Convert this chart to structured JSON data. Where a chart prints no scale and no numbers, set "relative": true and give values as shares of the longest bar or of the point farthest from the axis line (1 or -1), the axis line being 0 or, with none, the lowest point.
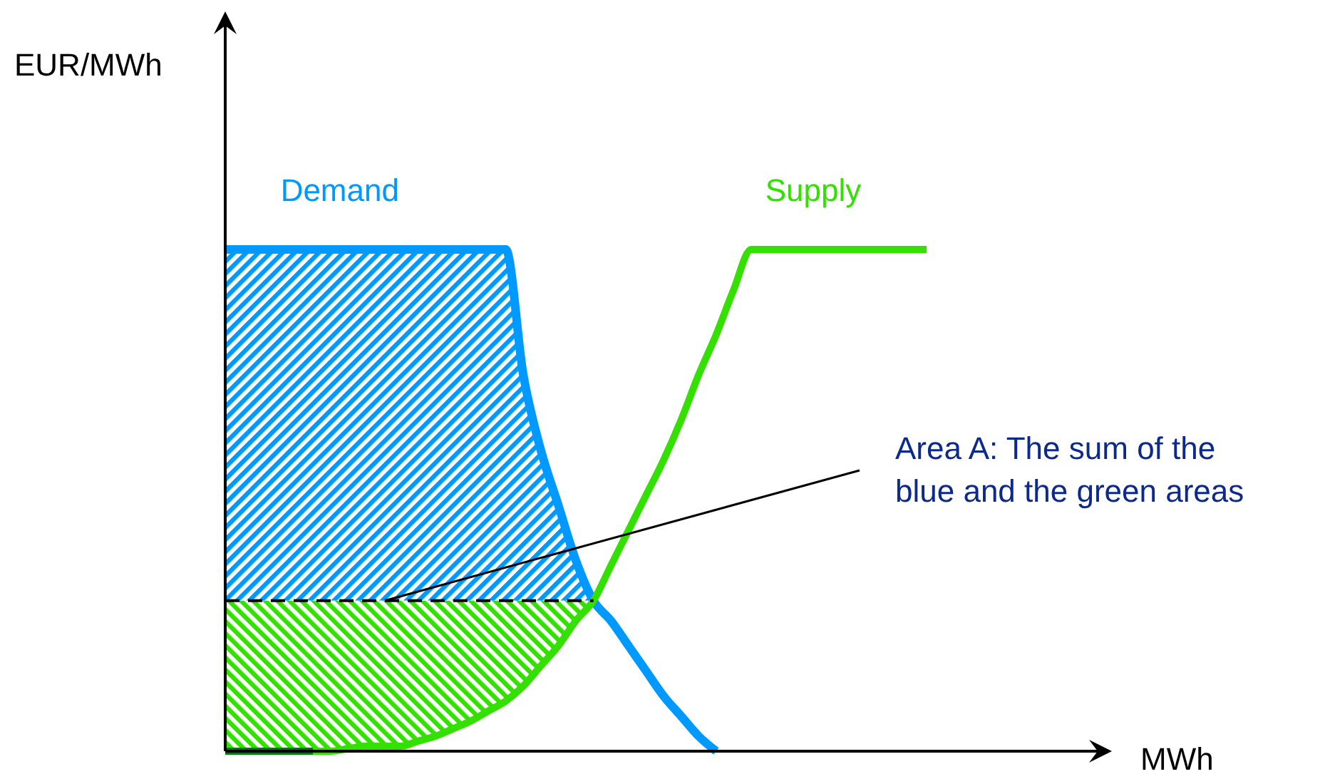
{
  "chart_data": {
    "type": "line",
    "relative": true,
    "categories": [
      null,
      null,
      null,
      null,
      null,
      null,
      null,
      null,
      null,
      null,
      null,
      null,
      null,
      null,
      null,
      null,
      null,
      null,
      null,
      null,
      null,
      null,
      null,
      null,
      null,
      null,
      null,
      null,
      null,
      null,
      null,
      null,
      null,
      null,
      null,
      null,
      null,
      null,
      null,
      null,
      null
    ],
    "series": [
      {
        "name": "Demand",
        "color": "#0099ff",
        "values": [
          1,
          1,
          1,
          1,
          1,
          1,
          1,
          1,
          1,
          1,
          1,
          1,
          1,
          1,
          1,
          1,
          1,
          0.75,
          0.6,
          0.49,
          0.38,
          0.3,
          0.26,
          0.21,
          0.16,
          0.11,
          0.07,
          0.03,
          0,
          null,
          null,
          null,
          null,
          null,
          null,
          null,
          null,
          null,
          null,
          null,
          null
        ],
        "lower": [
          0.3,
          0.3,
          0.3,
          0.3,
          0.3,
          0.3,
          0.3,
          0.3,
          0.3,
          0.3,
          0.3,
          0.3,
          0.3,
          0.3,
          0.3,
          0.3,
          0.3,
          0.3,
          0.3,
          0.3,
          0.3,
          0.3,
          null,
          null,
          null,
          null,
          null,
          null,
          null,
          null,
          null,
          null,
          null,
          null,
          null,
          null,
          null,
          null,
          null,
          null,
          null
        ],
        "upper": [
          1,
          1,
          1,
          1,
          1,
          1,
          1,
          1,
          1,
          1,
          1,
          1,
          1,
          1,
          1,
          1,
          1,
          0.75,
          0.6,
          0.49,
          0.38,
          0.3,
          null,
          null,
          null,
          null,
          null,
          null,
          null,
          null,
          null,
          null,
          null,
          null,
          null,
          null,
          null,
          null,
          null,
          null,
          null
        ]
      },
      {
        "name": "Supply",
        "color": "#33e000",
        "values": [
          0,
          0,
          0,
          0,
          0,
          0,
          0,
          0.005,
          0.01,
          0.01,
          0.01,
          0.02,
          0.03,
          0.045,
          0.06,
          0.08,
          0.1,
          0.13,
          0.17,
          0.21,
          0.26,
          0.3,
          0.37,
          0.44,
          0.51,
          0.58,
          0.66,
          0.75,
          0.83,
          0.92,
          1,
          1,
          1,
          1,
          1,
          1,
          1,
          1,
          1,
          1,
          1
        ],
        "lower": [
          0,
          0,
          0,
          0,
          0,
          0,
          0,
          0.005,
          0.01,
          0.01,
          0.01,
          0.02,
          0.03,
          0.045,
          0.06,
          0.08,
          0.1,
          0.13,
          0.17,
          0.21,
          0.26,
          0.3,
          null,
          null,
          null,
          null,
          null,
          null,
          null,
          null,
          null,
          null,
          null,
          null,
          null,
          null,
          null,
          null,
          null,
          null,
          null
        ],
        "upper": [
          0.3,
          0.3,
          0.3,
          0.3,
          0.3,
          0.3,
          0.3,
          0.3,
          0.3,
          0.3,
          0.3,
          0.3,
          0.3,
          0.3,
          0.3,
          0.3,
          0.3,
          0.3,
          0.3,
          0.3,
          0.3,
          0.3,
          null,
          null,
          null,
          null,
          null,
          null,
          null,
          null,
          null,
          null,
          null,
          null,
          null,
          null,
          null,
          null,
          null,
          null,
          null
        ]
      },
      {
        "color": "#007a10",
        "values": [
          0,
          0,
          0,
          0,
          0,
          0,
          null,
          null,
          null,
          null,
          null,
          null,
          null,
          null,
          null,
          null,
          null,
          null,
          null,
          null,
          null,
          null,
          null,
          null,
          null,
          null,
          null,
          null,
          null,
          null,
          null,
          null,
          null,
          null,
          null,
          null,
          null,
          null,
          null,
          null,
          null
        ]
      },
      {
        "color": "#000000",
        "line_style": "dashed",
        "values": [
          0.3,
          0.3,
          0.3,
          0.3,
          0.3,
          0.3,
          0.3,
          0.3,
          0.3,
          0.3,
          0.3,
          0.3,
          0.3,
          0.3,
          0.3,
          0.3,
          0.3,
          0.3,
          0.3,
          0.3,
          0.3,
          0.3,
          null,
          null,
          null,
          null,
          null,
          null,
          null,
          null,
          null,
          null,
          null,
          null,
          null,
          null,
          null,
          null,
          null,
          null,
          null
        ]
      }
    ],
    "annotations": [
      "EUR/MWh",
      "MWh",
      "Area A: The sum of the\nblue and the green areas"
    ]
  }
}
